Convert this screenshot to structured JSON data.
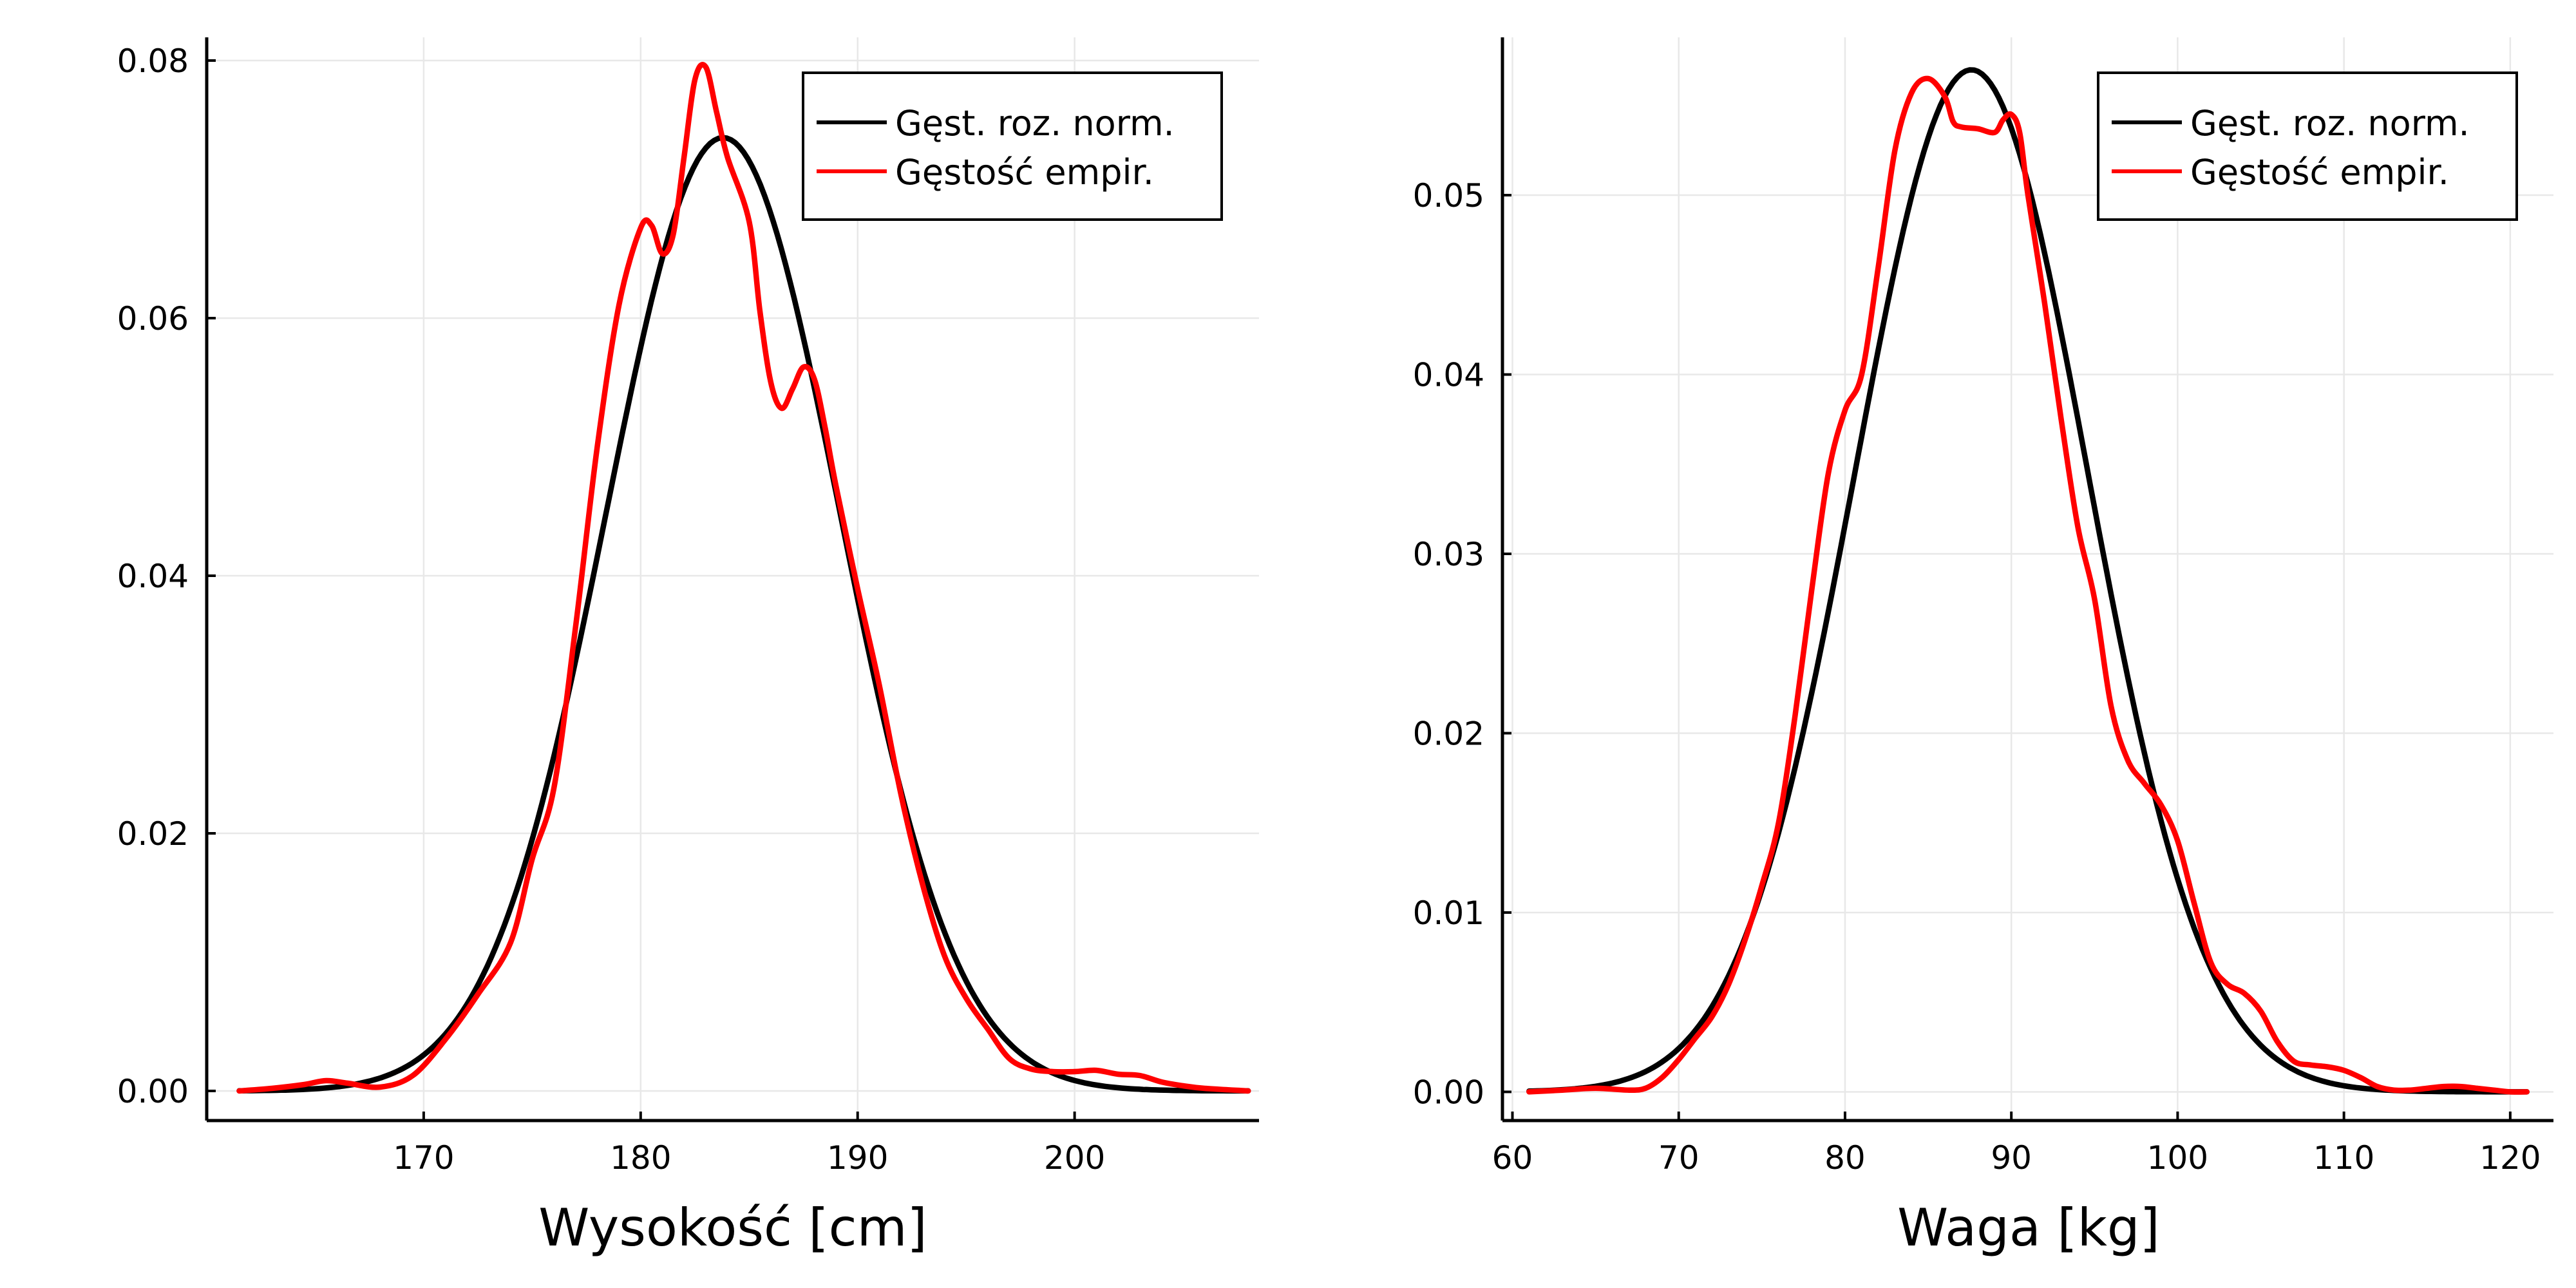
{
  "chart_data": [
    {
      "type": "line",
      "xlabel": "Wysokość [cm]",
      "ylabel": "",
      "xlim": [
        160,
        208.5
      ],
      "ylim": [
        -0.0023,
        0.0818
      ],
      "xticks": [
        170,
        180,
        190,
        200
      ],
      "xtick_labels": [
        "170",
        "180",
        "190",
        "200"
      ],
      "yticks": [
        0.0,
        0.02,
        0.04,
        0.06,
        0.08
      ],
      "ytick_labels": [
        "0.00",
        "0.02",
        "0.04",
        "0.06",
        "0.08"
      ],
      "grid": true,
      "legend_position": "top-right",
      "series": [
        {
          "name": "Gęst. roz. norm.",
          "color": "#000000",
          "style": "normal-pdf",
          "mean": 183.8,
          "sd": 5.39,
          "x_range": [
            161.5,
            208.0
          ]
        },
        {
          "name": "Gęstość empir.",
          "color": "#ff0000",
          "x": [
            161.5,
            163,
            164.5,
            165.5,
            166.5,
            168,
            169.5,
            171,
            172.5,
            174,
            175,
            176,
            177,
            178,
            179,
            180,
            180.5,
            181,
            181.5,
            182,
            182.5,
            183,
            183.5,
            184,
            185,
            185.5,
            186,
            186.5,
            187,
            187.5,
            188,
            188.5,
            189,
            190,
            191,
            192,
            193,
            194,
            195,
            196,
            197,
            198,
            199,
            200,
            201,
            202,
            203,
            204,
            205,
            206,
            208
          ],
          "y": [
            0.0,
            0.0002,
            0.0005,
            0.0008,
            0.0006,
            0.0003,
            0.0012,
            0.004,
            0.0075,
            0.0115,
            0.018,
            0.0235,
            0.036,
            0.05,
            0.061,
            0.067,
            0.0672,
            0.065,
            0.0665,
            0.0725,
            0.0785,
            0.0795,
            0.076,
            0.0725,
            0.0675,
            0.0605,
            0.055,
            0.053,
            0.0545,
            0.0562,
            0.0553,
            0.0515,
            0.047,
            0.039,
            0.0315,
            0.023,
            0.016,
            0.0105,
            0.0072,
            0.0048,
            0.0025,
            0.0017,
            0.0015,
            0.0015,
            0.0016,
            0.0013,
            0.0012,
            0.0007,
            0.0004,
            0.0002,
            0.0
          ]
        }
      ]
    },
    {
      "type": "line",
      "xlabel": "Waga [kg]",
      "ylabel": "",
      "xlim": [
        59.4,
        122.6
      ],
      "ylim": [
        -0.0016,
        0.0588
      ],
      "xticks": [
        60,
        70,
        80,
        90,
        100,
        110,
        120
      ],
      "xtick_labels": [
        "60",
        "70",
        "80",
        "90",
        "100",
        "110",
        "120"
      ],
      "yticks": [
        0.0,
        0.01,
        0.02,
        0.03,
        0.04,
        0.05
      ],
      "ytick_labels": [
        "0.00",
        "0.01",
        "0.02",
        "0.03",
        "0.04",
        "0.05"
      ],
      "grid": true,
      "legend_position": "top-right",
      "series": [
        {
          "name": "Gęst. roz. norm.",
          "color": "#000000",
          "style": "normal-pdf",
          "mean": 87.6,
          "sd": 7.0,
          "x_range": [
            61.0,
            121.0
          ]
        },
        {
          "name": "Gęstość empir.",
          "color": "#ff0000",
          "x": [
            61,
            63,
            65,
            67,
            68,
            69,
            70,
            71,
            72,
            73,
            74,
            75,
            76,
            77,
            78,
            79,
            80,
            81,
            82,
            83,
            84,
            85,
            86,
            86.5,
            87,
            88,
            89,
            89.5,
            90,
            90.5,
            91,
            92,
            93,
            94,
            95,
            96,
            97,
            98,
            99,
            100,
            101,
            102,
            103,
            104,
            105,
            106,
            107,
            108,
            109,
            110,
            111,
            112,
            113,
            114,
            115,
            116,
            117,
            118,
            119,
            120,
            121
          ],
          "y": [
            0.0,
            0.0001,
            0.0002,
            0.0001,
            0.0002,
            0.0008,
            0.0018,
            0.003,
            0.0042,
            0.006,
            0.0085,
            0.0115,
            0.015,
            0.021,
            0.028,
            0.0345,
            0.038,
            0.04,
            0.046,
            0.0525,
            0.0557,
            0.0565,
            0.0555,
            0.0541,
            0.0538,
            0.0537,
            0.0535,
            0.0542,
            0.0545,
            0.0535,
            0.05,
            0.044,
            0.0375,
            0.0315,
            0.0275,
            0.0215,
            0.0185,
            0.0172,
            0.016,
            0.014,
            0.0105,
            0.0072,
            0.006,
            0.0055,
            0.0045,
            0.0028,
            0.0017,
            0.0015,
            0.0014,
            0.0012,
            0.0008,
            0.0003,
            0.0001,
            0.0001,
            0.0002,
            0.0003,
            0.0003,
            0.0002,
            0.0001,
            0.0,
            0.0
          ]
        }
      ]
    }
  ]
}
